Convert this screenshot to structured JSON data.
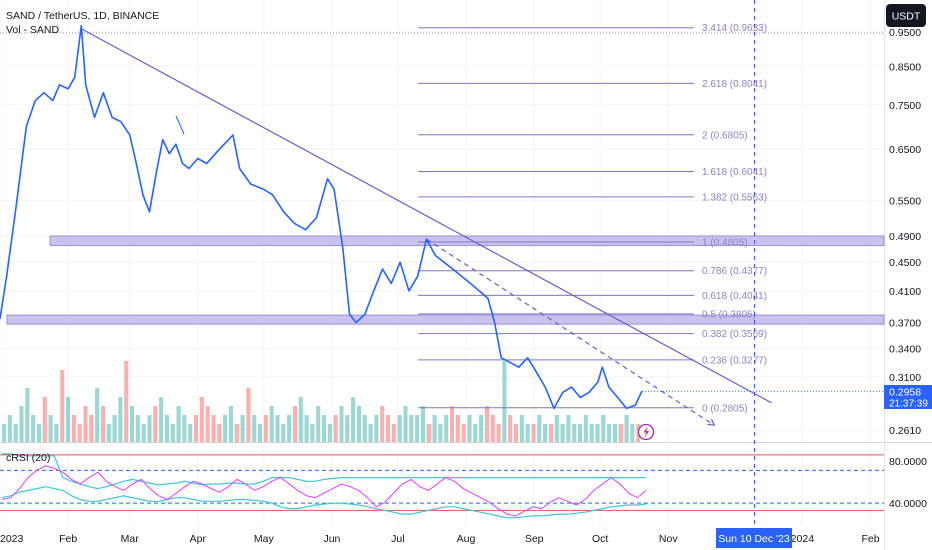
{
  "header": {
    "symbol": "SAND / TetherUS, 1D, BINANCE",
    "volume_label": "Vol - SAND",
    "currency_button": "USDT"
  },
  "indicator": {
    "label": "cRSI (20)"
  },
  "time_marker": {
    "label": "Sun 10 Dec '23"
  },
  "last_price": {
    "value": "0.2958",
    "countdown": "21:37:39"
  },
  "colors": {
    "price_line": "#2962ff",
    "trendline": "#6b5fc7",
    "fib": "#7d77c7",
    "zone_fill": "#c9c2ec",
    "vol_up": "#26a69a",
    "vol_down": "#ef5350",
    "crsi_line": "#e040fb",
    "band": "#3fc6d6",
    "marker": "#2962ff"
  },
  "chart_data": {
    "type": "line",
    "scale": "log",
    "ylim": [
      0.24,
      1.0
    ],
    "price_ticks": [
      0.95,
      0.85,
      0.75,
      0.65,
      0.55,
      0.49,
      0.45,
      0.41,
      0.37,
      0.34,
      0.31,
      0.261
    ],
    "price_tick_labels": [
      "0.9500",
      "0.8500",
      "0.7500",
      "0.6500",
      "0.5500",
      "0.4900",
      "0.4500",
      "0.4100",
      "0.3700",
      "0.3400",
      "0.3100",
      "0.2610"
    ],
    "x_ticks": [
      "2023-01-01",
      "2023-02-01",
      "2023-03-01",
      "2023-04-01",
      "2023-05-01",
      "2023-06-01",
      "2023-07-01",
      "2023-08-01",
      "2023-09-01",
      "2023-10-01",
      "2023-11-01",
      "2024-01-01",
      "2024-02-01"
    ],
    "x_tick_labels": [
      "2023",
      "Feb",
      "Mar",
      "Apr",
      "May",
      "Jun",
      "Jul",
      "Aug",
      "Sep",
      "Oct",
      "Nov",
      "2024",
      "Feb"
    ],
    "xlim": [
      "2022-12-29",
      "2024-02-18"
    ],
    "series": [
      {
        "values": [
          [
            "2022-12-29",
            0.4
          ],
          [
            "2023-01-01",
            0.375
          ],
          [
            "2023-01-04",
            0.43
          ],
          [
            "2023-01-08",
            0.53
          ],
          [
            "2023-01-13",
            0.7
          ],
          [
            "2023-01-17",
            0.76
          ],
          [
            "2023-01-21",
            0.78
          ],
          [
            "2023-01-25",
            0.76
          ],
          [
            "2023-01-28",
            0.8
          ],
          [
            "2023-02-01",
            0.79
          ],
          [
            "2023-02-04",
            0.82
          ],
          [
            "2023-02-07",
            0.97
          ],
          [
            "2023-02-09",
            0.8
          ],
          [
            "2023-02-13",
            0.72
          ],
          [
            "2023-02-17",
            0.78
          ],
          [
            "2023-02-21",
            0.72
          ],
          [
            "2023-02-25",
            0.71
          ],
          [
            "2023-03-01",
            0.68
          ],
          [
            "2023-03-04",
            0.62
          ],
          [
            "2023-03-07",
            0.56
          ],
          [
            "2023-03-10",
            0.53
          ],
          [
            "2023-03-13",
            0.6
          ],
          [
            "2023-03-16",
            0.67
          ],
          [
            "2023-03-19",
            0.64
          ],
          [
            "2023-03-22",
            0.66
          ],
          [
            "2023-03-25",
            0.62
          ],
          [
            "2023-03-28",
            0.61
          ],
          [
            "2023-04-01",
            0.63
          ],
          [
            "2023-04-05",
            0.62
          ],
          [
            "2023-04-09",
            0.64
          ],
          [
            "2023-04-13",
            0.66
          ],
          [
            "2023-04-17",
            0.68
          ],
          [
            "2023-04-20",
            0.61
          ],
          [
            "2023-04-25",
            0.58
          ],
          [
            "2023-05-01",
            0.57
          ],
          [
            "2023-05-05",
            0.56
          ],
          [
            "2023-05-10",
            0.53
          ],
          [
            "2023-05-15",
            0.51
          ],
          [
            "2023-05-20",
            0.5
          ],
          [
            "2023-05-25",
            0.52
          ],
          [
            "2023-05-30",
            0.59
          ],
          [
            "2023-06-02",
            0.57
          ],
          [
            "2023-06-06",
            0.47
          ],
          [
            "2023-06-09",
            0.38
          ],
          [
            "2023-06-12",
            0.37
          ],
          [
            "2023-06-16",
            0.38
          ],
          [
            "2023-06-20",
            0.41
          ],
          [
            "2023-06-24",
            0.44
          ],
          [
            "2023-06-28",
            0.42
          ],
          [
            "2023-07-02",
            0.45
          ],
          [
            "2023-07-06",
            0.41
          ],
          [
            "2023-07-10",
            0.43
          ],
          [
            "2023-07-14",
            0.485
          ],
          [
            "2023-07-18",
            0.46
          ],
          [
            "2023-07-22",
            0.45
          ],
          [
            "2023-07-26",
            0.44
          ],
          [
            "2023-07-30",
            0.43
          ],
          [
            "2023-08-03",
            0.42
          ],
          [
            "2023-08-07",
            0.41
          ],
          [
            "2023-08-11",
            0.4
          ],
          [
            "2023-08-14",
            0.37
          ],
          [
            "2023-08-17",
            0.33
          ],
          [
            "2023-08-21",
            0.325
          ],
          [
            "2023-08-25",
            0.32
          ],
          [
            "2023-08-29",
            0.33
          ],
          [
            "2023-09-02",
            0.315
          ],
          [
            "2023-09-06",
            0.3
          ],
          [
            "2023-09-10",
            0.28
          ],
          [
            "2023-09-14",
            0.295
          ],
          [
            "2023-09-18",
            0.3
          ],
          [
            "2023-09-22",
            0.29
          ],
          [
            "2023-09-26",
            0.295
          ],
          [
            "2023-09-30",
            0.305
          ],
          [
            "2023-10-02",
            0.32
          ],
          [
            "2023-10-05",
            0.3
          ],
          [
            "2023-10-09",
            0.29
          ],
          [
            "2023-10-13",
            0.28
          ],
          [
            "2023-10-17",
            0.283
          ],
          [
            "2023-10-20",
            0.296
          ]
        ]
      }
    ],
    "volume": [
      2,
      3,
      2,
      4,
      6,
      3,
      2,
      5,
      3,
      2,
      8,
      5,
      3,
      2,
      4,
      3,
      6,
      4,
      2,
      3,
      5,
      9,
      4,
      3,
      2,
      3,
      4,
      5,
      3,
      2,
      4,
      3,
      2,
      3,
      5,
      4,
      3,
      2,
      3,
      4,
      2,
      3,
      6,
      3,
      2,
      3,
      4,
      3,
      2,
      3,
      4,
      5,
      3,
      2,
      4,
      3,
      2,
      3,
      4,
      3,
      5,
      4,
      3,
      2,
      3,
      4,
      3,
      2,
      3,
      4,
      3,
      3,
      4,
      2,
      3,
      2,
      3,
      4,
      3,
      2,
      3,
      2,
      3,
      4,
      3,
      2,
      9,
      3,
      2,
      3,
      2,
      2,
      3,
      2,
      2,
      3,
      2,
      3,
      2,
      2,
      3,
      2,
      2,
      3,
      2,
      2,
      2,
      3,
      2,
      2
    ],
    "trendlines": [
      {
        "from": [
          "2023-02-07",
          0.96
        ],
        "to": [
          "2023-12-18",
          0.285
        ]
      },
      {
        "from": [
          "2023-07-14",
          0.485
        ],
        "to": [
          "2023-11-22",
          0.265
        ]
      }
    ],
    "fibonacci": [
      {
        "ratio": "3.414",
        "price": 0.9633,
        "label": "3.414 (0.9633)"
      },
      {
        "ratio": "2.618",
        "price": 0.8041,
        "label": "2.618 (0.8041)"
      },
      {
        "ratio": "2",
        "price": 0.6805,
        "label": "2 (0.6805)"
      },
      {
        "ratio": "1.618",
        "price": 0.6041,
        "label": "1.618 (0.6041)"
      },
      {
        "ratio": "1.382",
        "price": 0.5563,
        "label": "1.382 (0.5563)"
      },
      {
        "ratio": "1",
        "price": 0.4805,
        "label": "1 (0.4805)"
      },
      {
        "ratio": "0.786",
        "price": 0.4377,
        "label": "0.786 (0.4377)"
      },
      {
        "ratio": "0.618",
        "price": 0.4041,
        "label": "0.618 (0.4041)"
      },
      {
        "ratio": "0.5",
        "price": 0.3805,
        "label": "0.5 (0.3805)"
      },
      {
        "ratio": "0.382",
        "price": 0.3569,
        "label": "0.382 (0.3569)"
      },
      {
        "ratio": "0.236",
        "price": 0.3277,
        "label": "0.236 (0.3277)"
      },
      {
        "ratio": "0",
        "price": 0.2805,
        "label": "0 (0.2805)"
      }
    ],
    "zones": [
      {
        "top": 0.49,
        "bottom": 0.475
      },
      {
        "top": 0.379,
        "bottom": 0.368
      }
    ],
    "crsi": {
      "ticks": [
        80.0,
        40.0
      ],
      "tick_labels": [
        "80.0000",
        "40.0000"
      ],
      "ylim": [
        10,
        100
      ],
      "values": [
        38,
        40,
        50,
        62,
        70,
        75,
        72,
        68,
        60,
        55,
        62,
        68,
        58,
        52,
        48,
        55,
        60,
        50,
        42,
        38,
        45,
        52,
        58,
        55,
        50,
        46,
        52,
        60,
        55,
        48,
        52,
        58,
        62,
        55,
        48,
        42,
        40,
        45,
        50,
        55,
        52,
        48,
        40,
        30,
        35,
        45,
        55,
        60,
        52,
        48,
        55,
        62,
        58,
        50,
        45,
        40,
        35,
        28,
        22,
        20,
        25,
        30,
        28,
        35,
        40,
        36,
        32,
        38,
        48,
        55,
        62,
        55,
        45,
        40,
        48
      ],
      "band_upper": [
        88,
        88,
        86,
        86,
        86,
        86,
        86,
        62,
        58,
        55,
        52,
        50,
        52,
        55,
        58,
        60,
        58,
        56,
        54,
        55,
        56,
        58,
        56,
        54,
        55,
        55,
        56,
        56,
        55,
        55,
        58,
        62,
        62,
        62,
        60,
        58,
        58,
        60,
        61,
        62,
        62,
        62,
        62,
        62,
        62,
        62,
        62,
        62,
        62,
        62,
        62,
        62,
        62,
        62,
        62,
        62,
        62,
        62,
        62,
        62,
        62,
        62,
        62,
        62,
        62,
        62,
        62,
        62,
        62,
        62,
        62,
        62,
        62,
        62,
        62
      ],
      "band_lower": [
        40,
        42,
        46,
        48,
        50,
        52,
        50,
        48,
        42,
        38,
        36,
        36,
        38,
        40,
        42,
        40,
        38,
        36,
        36,
        38,
        40,
        40,
        38,
        36,
        36,
        36,
        37,
        38,
        38,
        37,
        36,
        34,
        30,
        28,
        28,
        30,
        32,
        33,
        34,
        34,
        33,
        32,
        30,
        28,
        26,
        24,
        22,
        22,
        24,
        26,
        28,
        30,
        30,
        28,
        26,
        24,
        22,
        20,
        18,
        18,
        19,
        20,
        20,
        21,
        22,
        22,
        23,
        24,
        26,
        28,
        30,
        31,
        32,
        32,
        33
      ]
    }
  }
}
